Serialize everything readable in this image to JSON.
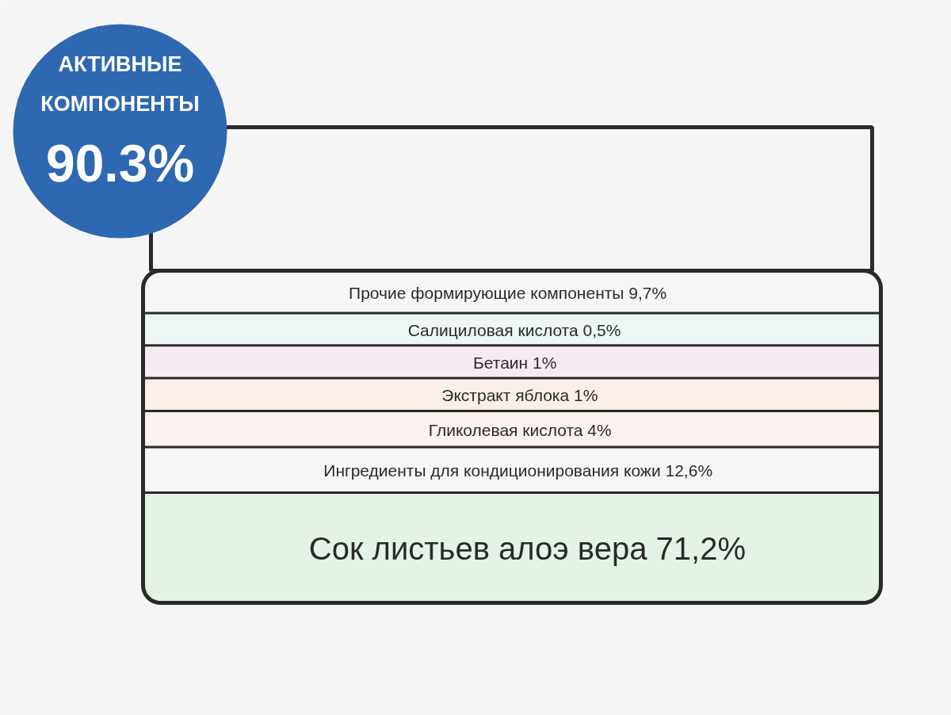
{
  "chart_data": {
    "type": "other",
    "annotations": [
      "АКТИВНЫЕ КОМПОНЕНТЫ",
      "90.3%"
    ],
    "categories": [
      "Прочие формирующие компоненты",
      "Салициловая кислота",
      "Бетаин",
      "Экстракт яблока",
      "Гликолевая кислота",
      "Ингредиенты для кондиционирования кожи",
      "Сок листьев алоэ вера"
    ],
    "values": [
      9.7,
      0.5,
      1,
      1,
      4,
      12.6,
      71.2
    ],
    "value_labels": [
      "9,7%",
      "0,5%",
      "1%",
      "1%",
      "4%",
      "12,6%",
      "71,2%"
    ],
    "colors": [
      "#f6f6f6",
      "#eef7f5",
      "#f6eaf3",
      "#fcefea",
      "#fcf2ef",
      "#f6f6f6",
      "#e4f3e5"
    ]
  }
}
